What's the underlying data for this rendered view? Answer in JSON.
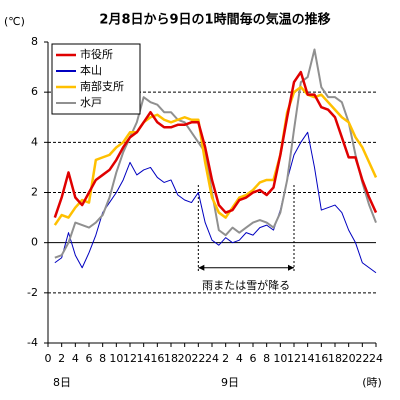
{
  "chart_data": {
    "type": "line",
    "title": "2月8日から9日の1時間毎の気温の推移",
    "y_unit": "(℃)",
    "x_unit": "(時)",
    "day_labels": [
      "8日",
      "9日"
    ],
    "x": [
      1,
      2,
      3,
      4,
      5,
      6,
      7,
      8,
      9,
      10,
      11,
      12,
      13,
      14,
      15,
      16,
      17,
      18,
      19,
      20,
      21,
      22,
      23,
      24,
      25,
      26,
      27,
      28,
      29,
      30,
      31,
      32,
      33,
      34,
      35,
      36,
      37,
      38,
      39,
      40,
      41,
      42,
      43,
      44,
      45,
      46,
      47,
      48
    ],
    "series": [
      {
        "name": "市役所",
        "color": "#e00000",
        "width": 2.5,
        "values": [
          1.0,
          1.8,
          2.8,
          1.8,
          1.5,
          2.0,
          2.5,
          2.7,
          2.9,
          3.3,
          3.8,
          4.2,
          4.4,
          4.8,
          5.2,
          4.8,
          4.6,
          4.6,
          4.7,
          4.7,
          4.8,
          4.8,
          3.8,
          2.5,
          1.5,
          1.2,
          1.3,
          1.7,
          1.8,
          2.0,
          2.1,
          1.9,
          2.2,
          3.5,
          5.0,
          6.4,
          6.8,
          5.9,
          5.9,
          5.4,
          5.3,
          5.0,
          4.2,
          3.4,
          3.4,
          2.5,
          1.8,
          1.2
        ]
      },
      {
        "name": "本山",
        "color": "#0000c0",
        "width": 1,
        "values": [
          -0.8,
          -0.6,
          0.4,
          -0.5,
          -1.0,
          -0.4,
          0.3,
          1.2,
          1.6,
          2.0,
          2.5,
          3.2,
          2.7,
          2.9,
          3.0,
          2.6,
          2.4,
          2.5,
          1.9,
          1.7,
          1.6,
          2.0,
          0.8,
          0.1,
          -0.1,
          0.2,
          0.0,
          0.1,
          0.4,
          0.3,
          0.6,
          0.7,
          0.5,
          1.3,
          2.5,
          3.5,
          4.0,
          4.4,
          3.0,
          1.3,
          1.4,
          1.5,
          1.2,
          0.5,
          0.0,
          -0.8,
          -1.0,
          -1.2
        ]
      },
      {
        "name": "南部支所",
        "color": "#ffc000",
        "width": 2.5,
        "values": [
          0.7,
          1.1,
          1.0,
          1.4,
          1.7,
          1.6,
          3.3,
          3.4,
          3.5,
          3.8,
          4.0,
          4.4,
          4.4,
          4.8,
          5.0,
          5.1,
          4.9,
          4.8,
          4.9,
          5.0,
          4.9,
          4.9,
          3.2,
          1.8,
          1.2,
          1.0,
          1.4,
          1.8,
          1.9,
          2.1,
          2.4,
          2.5,
          2.5,
          3.5,
          5.2,
          6.0,
          6.2,
          5.9,
          5.8,
          5.9,
          5.6,
          5.3,
          5.0,
          4.8,
          4.2,
          3.8,
          3.2,
          2.6
        ]
      },
      {
        "name": "水戸",
        "color": "#909090",
        "width": 2,
        "values": [
          -0.6,
          -0.5,
          0.0,
          0.8,
          0.7,
          0.6,
          0.8,
          1.1,
          1.8,
          2.8,
          3.6,
          4.2,
          4.8,
          5.8,
          5.6,
          5.5,
          5.2,
          5.2,
          4.9,
          4.8,
          4.4,
          4.0,
          3.6,
          2.0,
          0.5,
          0.3,
          0.6,
          0.4,
          0.6,
          0.8,
          0.9,
          0.8,
          0.6,
          1.2,
          2.5,
          4.5,
          6.4,
          6.6,
          7.7,
          6.2,
          5.8,
          5.8,
          5.6,
          4.8,
          3.5,
          2.4,
          1.5,
          0.8
        ]
      }
    ],
    "xlim": [
      0,
      48
    ],
    "xticks": [
      0,
      2,
      4,
      6,
      8,
      10,
      12,
      14,
      16,
      18,
      20,
      22,
      24,
      {
        "value": 26,
        "label": "2"
      },
      {
        "value": 28,
        "label": "4"
      },
      {
        "value": 30,
        "label": "6"
      },
      {
        "value": 32,
        "label": "8"
      },
      {
        "value": 34,
        "label": "10"
      },
      {
        "value": 36,
        "label": "12"
      },
      {
        "value": 38,
        "label": "14"
      },
      {
        "value": 40,
        "label": "16"
      },
      {
        "value": 42,
        "label": "18"
      },
      {
        "value": 44,
        "label": "20"
      },
      {
        "value": 46,
        "label": "22"
      },
      {
        "value": 48,
        "label": "24"
      }
    ],
    "ylim": [
      -4,
      8
    ],
    "yticks": [
      -4,
      -2,
      0,
      2,
      4,
      6,
      8
    ],
    "grid": true,
    "legend": "top-left",
    "annotation": {
      "text": "雨または雪が降る",
      "from": 22,
      "to": 36
    }
  }
}
